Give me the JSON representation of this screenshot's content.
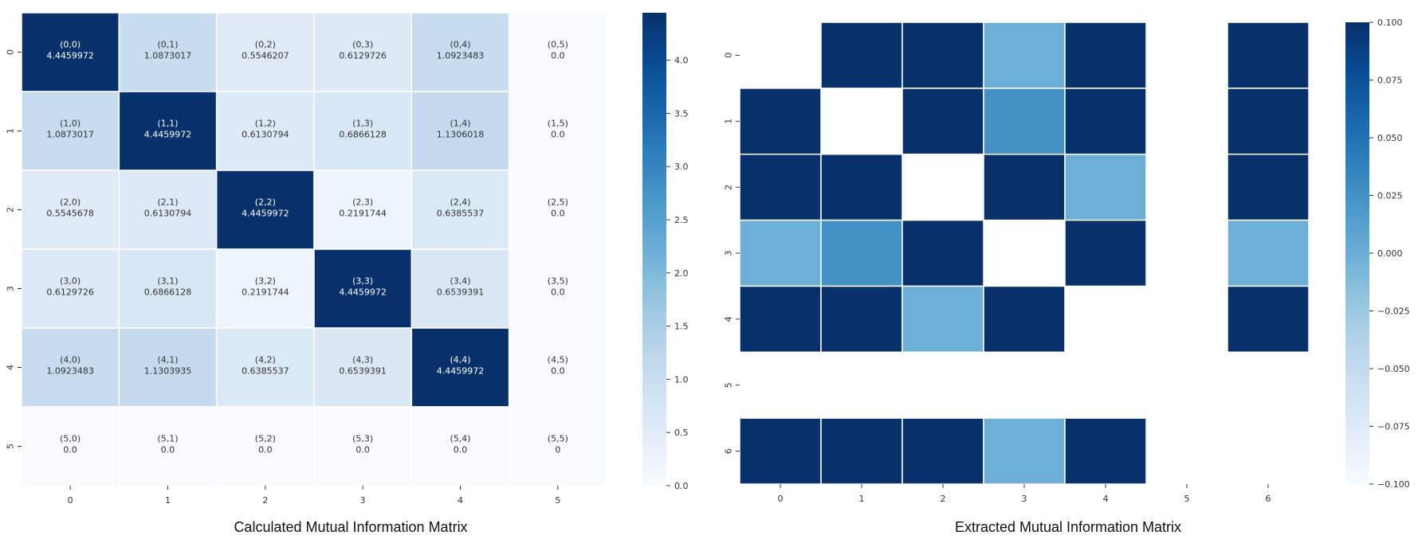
{
  "chart_data": [
    {
      "type": "heatmap",
      "title": "Calculated Mutual Information Matrix",
      "x_categories": [
        "0",
        "1",
        "2",
        "3",
        "4",
        "5"
      ],
      "y_categories": [
        "0",
        "1",
        "2",
        "3",
        "4",
        "5"
      ],
      "cells": [
        [
          {
            "label": "(0,0)",
            "value": "4.4459972"
          },
          {
            "label": "(0,1)",
            "value": "1.0873017"
          },
          {
            "label": "(0,2)",
            "value": "0.5546207"
          },
          {
            "label": "(0,3)",
            "value": "0.6129726"
          },
          {
            "label": "(0,4)",
            "value": "1.0923483"
          },
          {
            "label": "(0,5)",
            "value": "0.0"
          }
        ],
        [
          {
            "label": "(1,0)",
            "value": "1.0873017"
          },
          {
            "label": "(1,1)",
            "value": "4.4459972"
          },
          {
            "label": "(1,2)",
            "value": "0.6130794"
          },
          {
            "label": "(1,3)",
            "value": "0.6866128"
          },
          {
            "label": "(1,4)",
            "value": "1.1306018"
          },
          {
            "label": "(1,5)",
            "value": "0.0"
          }
        ],
        [
          {
            "label": "(2,0)",
            "value": "0.5545678"
          },
          {
            "label": "(2,1)",
            "value": "0.6130794"
          },
          {
            "label": "(2,2)",
            "value": "4.4459972"
          },
          {
            "label": "(2,3)",
            "value": "0.2191744"
          },
          {
            "label": "(2,4)",
            "value": "0.6385537"
          },
          {
            "label": "(2,5)",
            "value": "0.0"
          }
        ],
        [
          {
            "label": "(3,0)",
            "value": "0.6129726"
          },
          {
            "label": "(3,1)",
            "value": "0.6866128"
          },
          {
            "label": "(3,2)",
            "value": "0.2191744"
          },
          {
            "label": "(3,3)",
            "value": "4.4459972"
          },
          {
            "label": "(3,4)",
            "value": "0.6539391"
          },
          {
            "label": "(3,5)",
            "value": "0.0"
          }
        ],
        [
          {
            "label": "(4,0)",
            "value": "1.0923483"
          },
          {
            "label": "(4,1)",
            "value": "1.1303935"
          },
          {
            "label": "(4,2)",
            "value": "0.6385537"
          },
          {
            "label": "(4,3)",
            "value": "0.6539391"
          },
          {
            "label": "(4,4)",
            "value": "4.4459972"
          },
          {
            "label": "(4,5)",
            "value": "0.0"
          }
        ],
        [
          {
            "label": "(5,0)",
            "value": "0.0"
          },
          {
            "label": "(5,1)",
            "value": "0.0"
          },
          {
            "label": "(5,2)",
            "value": "0.0"
          },
          {
            "label": "(5,3)",
            "value": "0.0"
          },
          {
            "label": "(5,4)",
            "value": "0.0"
          },
          {
            "label": "(5,5)",
            "value": "0"
          }
        ]
      ],
      "colorbar": {
        "min": 0,
        "max": 4.4459972,
        "ticks": [
          "0.0",
          "0.5",
          "1.0",
          "1.5",
          "2.0",
          "2.5",
          "3.0",
          "3.5",
          "4.0"
        ],
        "colormap": "Blues"
      },
      "grid": true
    },
    {
      "type": "heatmap",
      "title": "Extracted Mutual Information Matrix",
      "x_categories": [
        "0",
        "1",
        "2",
        "3",
        "4",
        "5",
        "6"
      ],
      "y_categories": [
        "0",
        "1",
        "2",
        "3",
        "4",
        "5",
        "6"
      ],
      "note_blank": "null = cell not drawn",
      "values": [
        [
          null,
          0.1,
          0.1,
          0.0,
          0.1,
          null,
          0.1
        ],
        [
          0.1,
          null,
          0.1,
          0.025,
          0.1,
          null,
          0.1
        ],
        [
          0.1,
          0.1,
          null,
          0.1,
          0.0,
          null,
          0.1
        ],
        [
          0.0,
          0.025,
          0.1,
          null,
          0.1,
          null,
          0.0
        ],
        [
          0.1,
          0.1,
          0.0,
          0.1,
          null,
          null,
          0.1
        ],
        [
          null,
          null,
          null,
          null,
          null,
          null,
          null
        ],
        [
          0.1,
          0.1,
          0.1,
          0.0,
          0.1,
          null,
          null
        ]
      ],
      "colorbar": {
        "min": -0.1,
        "max": 0.1,
        "ticks": [
          "0.100",
          "0.075",
          "0.050",
          "0.025",
          "0.000",
          "−0.025",
          "−0.050",
          "−0.075",
          "−0.100"
        ],
        "colormap": "Blues"
      },
      "grid": true
    }
  ],
  "colors": {
    "blues": [
      "#f7fbff",
      "#deebf7",
      "#c6dbef",
      "#9ecae1",
      "#6baed6",
      "#4292c6",
      "#2171b5",
      "#08519c",
      "#08306b"
    ]
  }
}
